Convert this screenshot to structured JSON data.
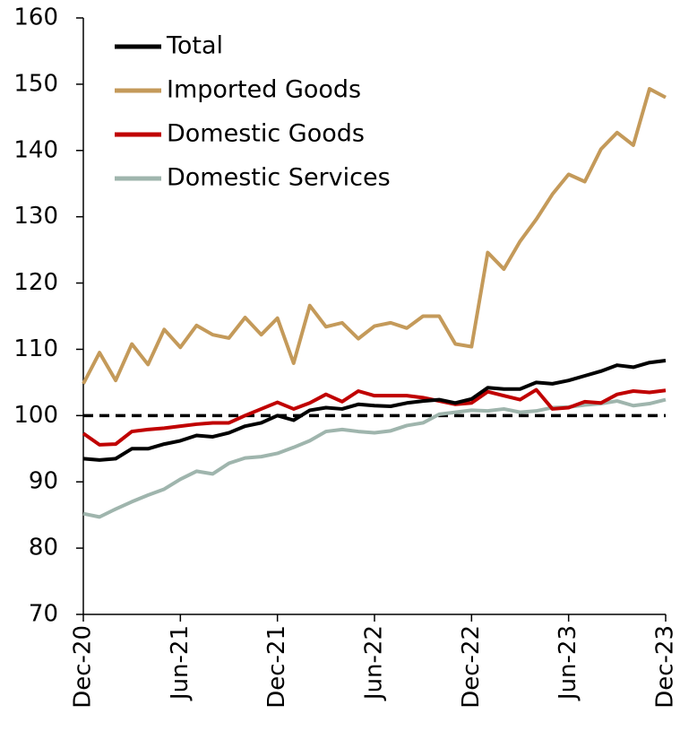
{
  "chart_data": {
    "type": "line",
    "categories": [
      "Dec-20",
      null,
      null,
      null,
      null,
      null,
      "Jun-21",
      null,
      null,
      null,
      null,
      null,
      "Dec-21",
      null,
      null,
      null,
      null,
      null,
      "Jun-22",
      null,
      null,
      null,
      null,
      null,
      "Dec-22",
      null,
      null,
      null,
      null,
      null,
      "Jun-23",
      null,
      null,
      null,
      null,
      null,
      "Dec-23"
    ],
    "series": [
      {
        "name": "Total",
        "color": "#000000",
        "values": [
          93.5,
          93.3,
          93.5,
          95,
          95,
          95.7,
          96.2,
          97,
          96.8,
          97.4,
          98.4,
          98.9,
          100,
          99.3,
          100.8,
          101.2,
          101,
          101.7,
          101.5,
          101.4,
          101.9,
          102.2,
          102.4,
          101.9,
          102.5,
          104.2,
          104,
          104,
          105,
          104.8,
          105.3,
          106,
          106.7,
          107.6,
          107.3,
          108,
          108.3
        ]
      },
      {
        "name": "Imported Goods",
        "color": "#c49a5a",
        "values": [
          104.8,
          109.5,
          105.3,
          110.8,
          107.7,
          113,
          110.3,
          113.6,
          112.2,
          111.7,
          114.8,
          112.2,
          114.7,
          107.9,
          116.6,
          113.4,
          114,
          111.6,
          113.5,
          114,
          113.2,
          115,
          115,
          110.8,
          110.4,
          124.6,
          122.1,
          126.3,
          129.6,
          133.4,
          136.4,
          135.3,
          140.2,
          142.7,
          140.8,
          149.3,
          148
        ]
      },
      {
        "name": "Domestic Goods",
        "color": "#c00000",
        "values": [
          97.3,
          95.6,
          95.7,
          97.6,
          97.9,
          98.1,
          98.4,
          98.7,
          98.9,
          98.9,
          100,
          101,
          102,
          101,
          101.9,
          103.2,
          102.1,
          103.7,
          103,
          103,
          103,
          102.7,
          102.2,
          101.7,
          101.9,
          103.6,
          103,
          102.4,
          103.9,
          101,
          101.2,
          102.1,
          101.9,
          103.2,
          103.7,
          103.5,
          103.8
        ]
      },
      {
        "name": "Domestic Services",
        "color": "#9fb5ad",
        "values": [
          85.2,
          84.7,
          85.9,
          87,
          88,
          88.9,
          90.4,
          91.6,
          91.2,
          92.8,
          93.6,
          93.8,
          94.3,
          95.2,
          96.2,
          97.6,
          97.9,
          97.6,
          97.4,
          97.7,
          98.5,
          98.9,
          100.2,
          100.5,
          100.8,
          100.7,
          101,
          100.5,
          100.7,
          101.2,
          101.3,
          101.6,
          101.8,
          102.2,
          101.5,
          101.8,
          102.4
        ]
      }
    ],
    "reference_line": 100,
    "ylim": [
      70,
      160
    ],
    "yticks": [
      70,
      80,
      90,
      100,
      110,
      120,
      130,
      140,
      150,
      160
    ],
    "grid": false,
    "legend": "top-left"
  }
}
